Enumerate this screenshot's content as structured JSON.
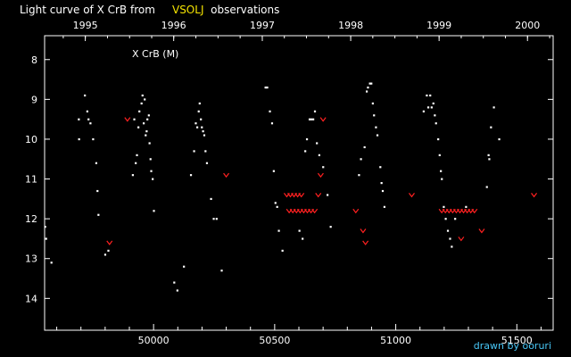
{
  "title": {
    "prefix": "Light curve of X CrB from",
    "source": "VSOLJ",
    "suffix": "observations"
  },
  "credit": "drawn by ooruri",
  "colors": {
    "background": "#000000",
    "axes": "#ffffff",
    "visual_points": "#ffffff",
    "limit_points": "#ff2020",
    "source_highlight": "#f5e400",
    "credit": "#48c8f8"
  },
  "chart_data": {
    "type": "scatter",
    "label": "X CrB (M)",
    "xlim": [
      49550,
      51650
    ],
    "ylim": [
      14.8,
      7.4
    ],
    "y_inverted": true,
    "x_ticks": [
      50000,
      50500,
      51000,
      51500
    ],
    "x_tick_labels": [
      "50000",
      "50500",
      "51000",
      "51500"
    ],
    "y_ticks": [
      8,
      9,
      10,
      11,
      12,
      13,
      14
    ],
    "top_axis": {
      "labels": [
        "1995",
        "1996",
        "1997",
        "1998",
        "1999",
        "2000"
      ],
      "positions": [
        49718,
        50083,
        50449,
        50814,
        51179,
        51544
      ]
    },
    "grid": false,
    "series": [
      {
        "role": "visual observations",
        "marker": "dot",
        "color": "#ffffff",
        "points": [
          [
            49552,
            12.2
          ],
          [
            49556,
            12.5
          ],
          [
            49578,
            13.1
          ],
          [
            49691,
            9.5
          ],
          [
            49692,
            10.0
          ],
          [
            49716,
            8.9
          ],
          [
            49726,
            9.3
          ],
          [
            49731,
            9.5
          ],
          [
            49739,
            9.6
          ],
          [
            49750,
            10.0
          ],
          [
            49763,
            10.6
          ],
          [
            49768,
            11.3
          ],
          [
            49772,
            11.9
          ],
          [
            49800,
            12.9
          ],
          [
            49813,
            12.8
          ],
          [
            49914,
            10.9
          ],
          [
            49920,
            9.5
          ],
          [
            49926,
            10.6
          ],
          [
            49931,
            10.4
          ],
          [
            49937,
            9.7
          ],
          [
            49941,
            9.3
          ],
          [
            49950,
            9.1
          ],
          [
            49954,
            8.9
          ],
          [
            49959,
            9.6
          ],
          [
            49963,
            9.0
          ],
          [
            49967,
            9.9
          ],
          [
            49971,
            9.8
          ],
          [
            49974,
            9.5
          ],
          [
            49980,
            9.4
          ],
          [
            49983,
            10.1
          ],
          [
            49987,
            10.5
          ],
          [
            49990,
            10.8
          ],
          [
            49996,
            11.0
          ],
          [
            50001,
            11.8
          ],
          [
            50085,
            13.6
          ],
          [
            50098,
            13.8
          ],
          [
            50125,
            13.2
          ],
          [
            50154,
            10.9
          ],
          [
            50167,
            10.3
          ],
          [
            50174,
            9.6
          ],
          [
            50180,
            9.7
          ],
          [
            50186,
            9.3
          ],
          [
            50190,
            9.1
          ],
          [
            50195,
            9.5
          ],
          [
            50199,
            9.7
          ],
          [
            50204,
            9.8
          ],
          [
            50209,
            9.9
          ],
          [
            50214,
            10.3
          ],
          [
            50220,
            10.6
          ],
          [
            50237,
            11.5
          ],
          [
            50248,
            12.0
          ],
          [
            50260,
            12.0
          ],
          [
            50281,
            13.3
          ],
          [
            50462,
            8.7
          ],
          [
            50469,
            8.7
          ],
          [
            50480,
            9.3
          ],
          [
            50489,
            9.6
          ],
          [
            50496,
            10.8
          ],
          [
            50503,
            11.6
          ],
          [
            50510,
            11.7
          ],
          [
            50517,
            12.3
          ],
          [
            50532,
            12.8
          ],
          [
            50602,
            12.3
          ],
          [
            50615,
            12.5
          ],
          [
            50626,
            10.3
          ],
          [
            50633,
            10.0
          ],
          [
            50644,
            9.5
          ],
          [
            50651,
            9.5
          ],
          [
            50659,
            9.5
          ],
          [
            50666,
            9.3
          ],
          [
            50674,
            10.1
          ],
          [
            50684,
            10.4
          ],
          [
            50700,
            10.7
          ],
          [
            50718,
            11.4
          ],
          [
            50731,
            12.2
          ],
          [
            50848,
            10.9
          ],
          [
            50856,
            10.5
          ],
          [
            50871,
            10.2
          ],
          [
            50880,
            8.8
          ],
          [
            50885,
            8.7
          ],
          [
            50893,
            8.6
          ],
          [
            50899,
            8.6
          ],
          [
            50905,
            9.1
          ],
          [
            50910,
            9.4
          ],
          [
            50918,
            9.7
          ],
          [
            50924,
            9.9
          ],
          [
            50936,
            10.7
          ],
          [
            50941,
            11.1
          ],
          [
            50946,
            11.3
          ],
          [
            50953,
            11.7
          ],
          [
            51115,
            9.3
          ],
          [
            51128,
            8.9
          ],
          [
            51134,
            9.2
          ],
          [
            51142,
            8.9
          ],
          [
            51148,
            9.2
          ],
          [
            51155,
            9.1
          ],
          [
            51161,
            9.4
          ],
          [
            51166,
            9.6
          ],
          [
            51175,
            10.0
          ],
          [
            51181,
            10.4
          ],
          [
            51186,
            10.8
          ],
          [
            51190,
            11.0
          ],
          [
            51198,
            11.7
          ],
          [
            51206,
            12.0
          ],
          [
            51215,
            12.3
          ],
          [
            51224,
            12.5
          ],
          [
            51231,
            12.7
          ],
          [
            51245,
            12.0
          ],
          [
            51290,
            11.7
          ],
          [
            51376,
            11.2
          ],
          [
            51383,
            10.4
          ],
          [
            51386,
            10.5
          ],
          [
            51393,
            9.7
          ],
          [
            51405,
            9.2
          ],
          [
            51427,
            10.0
          ]
        ]
      },
      {
        "role": "fainter-than (limit) observations",
        "marker": "v",
        "color": "#ff2020",
        "points": [
          [
            49818,
            12.6
          ],
          [
            49892,
            9.5
          ],
          [
            50300,
            10.9
          ],
          [
            50550,
            11.4
          ],
          [
            50565,
            11.4
          ],
          [
            50580,
            11.4
          ],
          [
            50595,
            11.4
          ],
          [
            50610,
            11.4
          ],
          [
            50560,
            11.8
          ],
          [
            50575,
            11.8
          ],
          [
            50590,
            11.8
          ],
          [
            50605,
            11.8
          ],
          [
            50620,
            11.8
          ],
          [
            50635,
            11.8
          ],
          [
            50650,
            11.8
          ],
          [
            50665,
            11.8
          ],
          [
            50680,
            11.4
          ],
          [
            50690,
            10.9
          ],
          [
            50700,
            9.5
          ],
          [
            50835,
            11.8
          ],
          [
            50865,
            12.3
          ],
          [
            50875,
            12.6
          ],
          [
            51066,
            11.4
          ],
          [
            51190,
            11.8
          ],
          [
            51205,
            11.8
          ],
          [
            51220,
            11.8
          ],
          [
            51235,
            11.8
          ],
          [
            51250,
            11.8
          ],
          [
            51265,
            11.8
          ],
          [
            51280,
            11.8
          ],
          [
            51295,
            11.8
          ],
          [
            51310,
            11.8
          ],
          [
            51325,
            11.8
          ],
          [
            51270,
            12.5
          ],
          [
            51355,
            12.3
          ],
          [
            51571,
            11.4
          ]
        ]
      }
    ]
  }
}
